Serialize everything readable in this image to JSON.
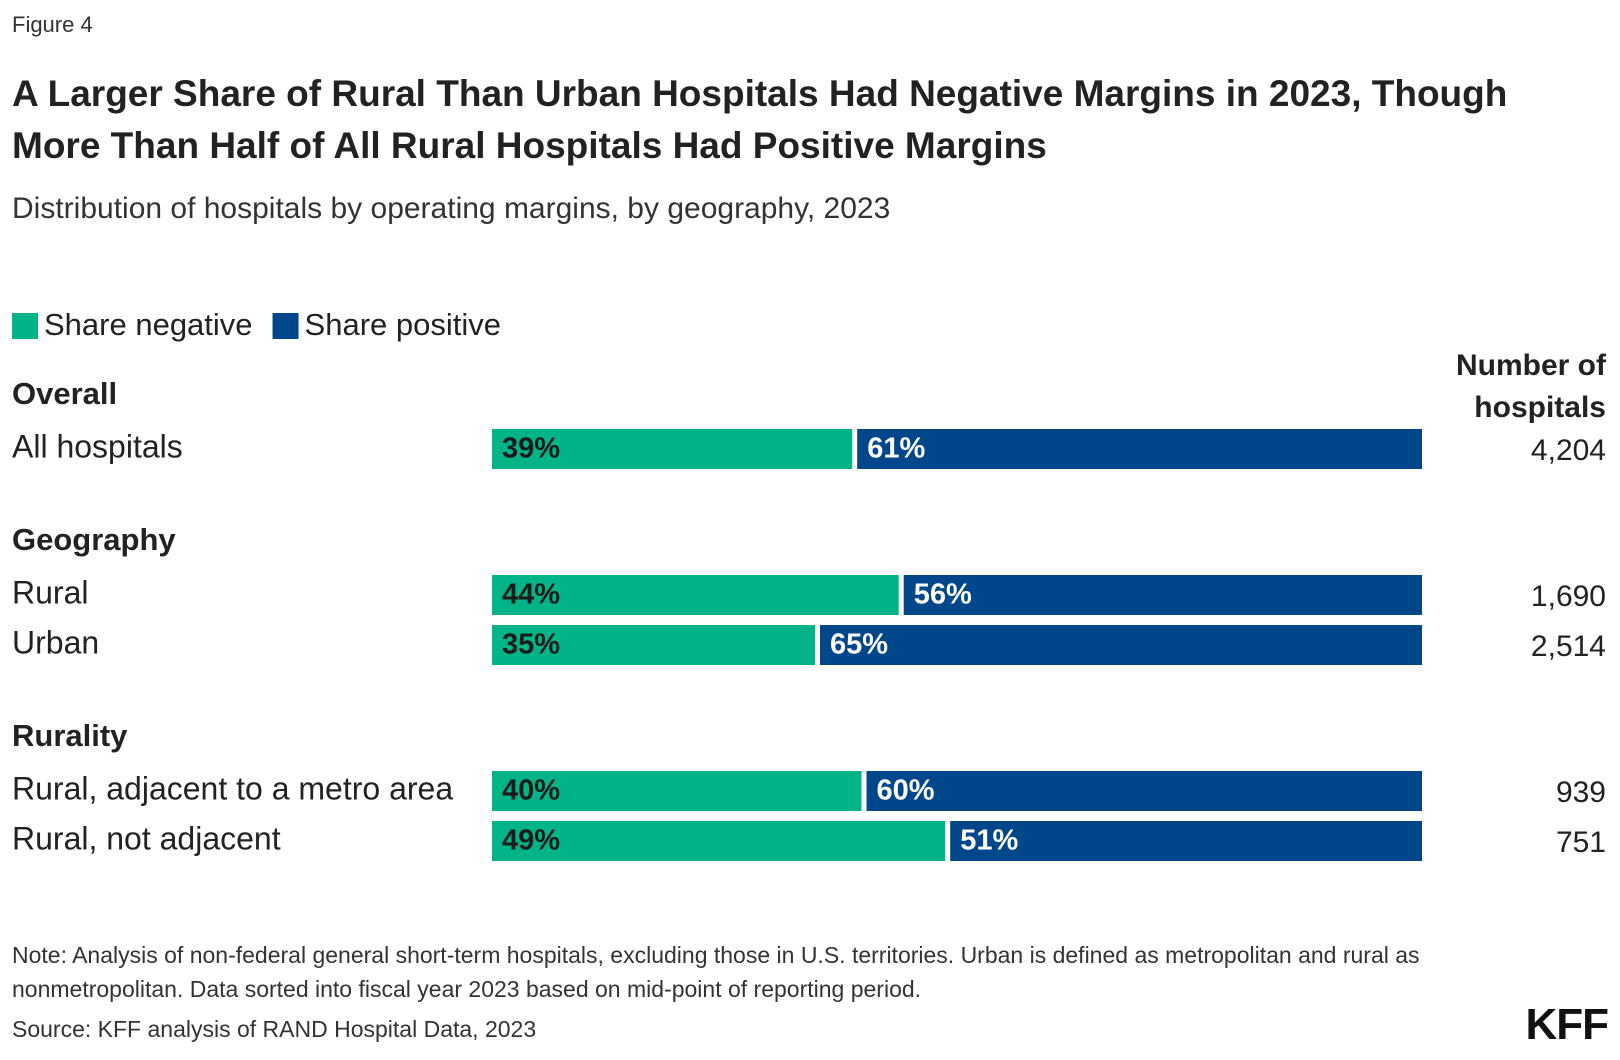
{
  "chart_data": {
    "type": "bar",
    "orientation": "horizontal",
    "stacked": true,
    "figure_label": "Figure 4",
    "title": "A Larger Share of Rural Than Urban Hospitals Had Negative Margins in 2023, Though More Than Half of All Rural Hospitals Had Positive Margins",
    "subtitle": "Distribution of hospitals by operating margins, by geography, 2023",
    "groups": [
      {
        "name": "Overall",
        "categories": [
          "All hospitals"
        ]
      },
      {
        "name": "Geography",
        "categories": [
          "Rural",
          "Urban"
        ]
      },
      {
        "name": "Rurality",
        "categories": [
          "Rural, adjacent to a metro area",
          "Rural, not adjacent"
        ]
      }
    ],
    "series": [
      {
        "name": "Share negative",
        "color": "#00b488",
        "values": [
          39,
          44,
          35,
          40,
          49
        ],
        "value_labels": [
          "39%",
          "44%",
          "35%",
          "40%",
          "49%"
        ]
      },
      {
        "name": "Share positive",
        "color": "#00468b",
        "values": [
          61,
          56,
          65,
          60,
          51
        ],
        "value_labels": [
          "61%",
          "56%",
          "65%",
          "60%",
          "51%"
        ]
      }
    ],
    "xlim": [
      0,
      100
    ],
    "counts_title": "Number of hospitals",
    "counts": [
      {
        "value": 4204,
        "label": "4,204"
      },
      {
        "value": 1690,
        "label": "1,690"
      },
      {
        "value": 2514,
        "label": "2,514"
      },
      {
        "value": 939,
        "label": "939"
      },
      {
        "value": 751,
        "label": "751"
      }
    ],
    "note": "Note: Analysis of non-federal general short-term hospitals, excluding those in U.S. territories. Urban is defined as metropolitan and rural as nonmetropolitan. Data sorted into fiscal year 2023 based on mid-point of reporting period.",
    "source": "Source: KFF analysis of RAND Hospital Data, 2023",
    "logo": "KFF"
  }
}
